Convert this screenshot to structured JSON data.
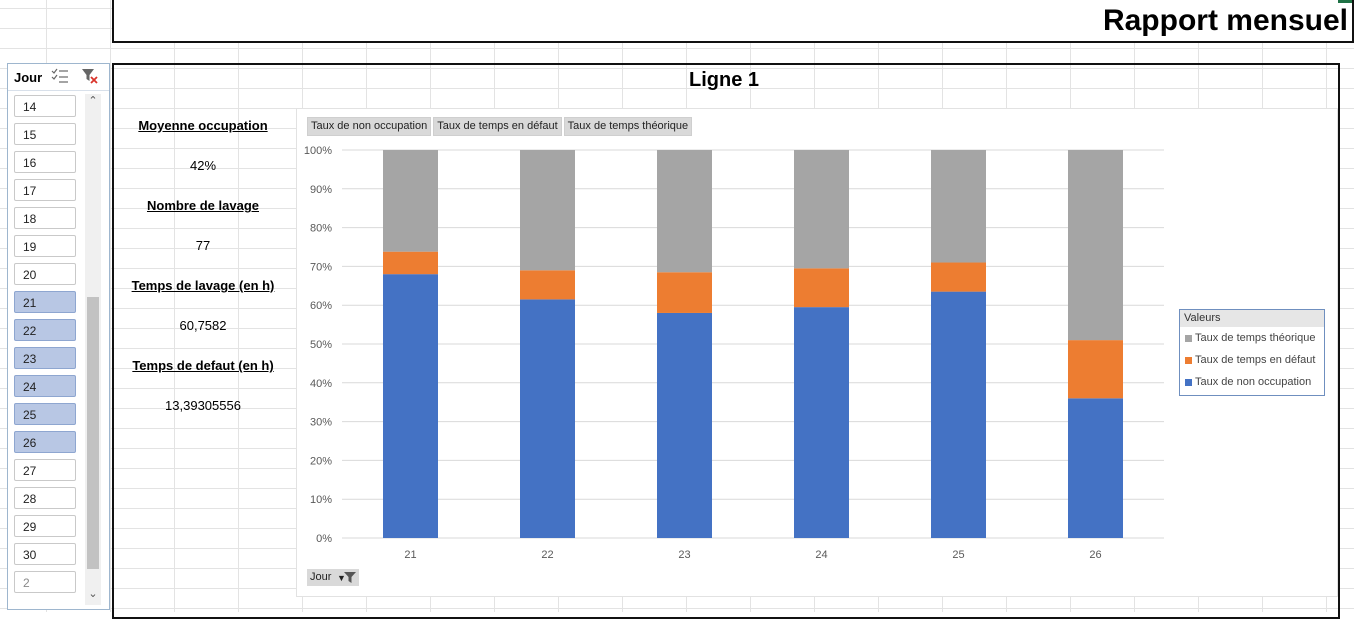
{
  "header": {
    "title": "Rapport mensuel"
  },
  "slicer": {
    "title": "Jour",
    "items": [
      {
        "label": "14",
        "selected": false
      },
      {
        "label": "15",
        "selected": false
      },
      {
        "label": "16",
        "selected": false
      },
      {
        "label": "17",
        "selected": false
      },
      {
        "label": "18",
        "selected": false
      },
      {
        "label": "19",
        "selected": false
      },
      {
        "label": "20",
        "selected": false
      },
      {
        "label": "21",
        "selected": true
      },
      {
        "label": "22",
        "selected": true
      },
      {
        "label": "23",
        "selected": true
      },
      {
        "label": "24",
        "selected": true
      },
      {
        "label": "25",
        "selected": true
      },
      {
        "label": "26",
        "selected": true
      },
      {
        "label": "27",
        "selected": false
      },
      {
        "label": "28",
        "selected": false
      },
      {
        "label": "29",
        "selected": false
      },
      {
        "label": "30",
        "selected": false
      },
      {
        "label": "2",
        "selected": false,
        "dim": true
      }
    ]
  },
  "section": {
    "title": "Ligne 1"
  },
  "stats": {
    "occupation_label": "Moyenne occupation",
    "occupation_value": "42%",
    "lavage_count_label": "Nombre de lavage",
    "lavage_count_value": "77",
    "lavage_time_label": "Temps de lavage (en h)",
    "lavage_time_value": "60,7582",
    "defaut_time_label": "Temps de defaut (en h)",
    "defaut_time_value": "13,39305556"
  },
  "chart_buttons": {
    "field1": "Taux de non occupation",
    "field2": "Taux de temps en défaut",
    "field3": "Taux de temps théorique",
    "axis_field": "Jour"
  },
  "legend": {
    "title": "Valeurs",
    "items": [
      "Taux de temps théorique",
      "Taux de temps en défaut",
      "Taux de non occupation"
    ]
  },
  "colors": {
    "blue": "#4472c4",
    "orange": "#ed7d31",
    "gray": "#a5a5a5"
  },
  "chart_data": {
    "type": "bar",
    "stacked": true,
    "categories": [
      "21",
      "22",
      "23",
      "24",
      "25",
      "26"
    ],
    "series": [
      {
        "name": "Taux de non occupation",
        "values": [
          68,
          61.5,
          58,
          59.5,
          63.5,
          36
        ]
      },
      {
        "name": "Taux de temps en défaut",
        "values": [
          5.8,
          7.5,
          10.5,
          10,
          7.5,
          15
        ]
      },
      {
        "name": "Taux de temps théorique",
        "values": [
          26.2,
          31,
          31.5,
          30.5,
          29,
          49
        ]
      }
    ],
    "ylim": [
      0,
      100
    ],
    "yticks": [
      "0%",
      "10%",
      "20%",
      "30%",
      "40%",
      "50%",
      "60%",
      "70%",
      "80%",
      "90%",
      "100%"
    ],
    "grid": true,
    "legend_position": "right"
  }
}
